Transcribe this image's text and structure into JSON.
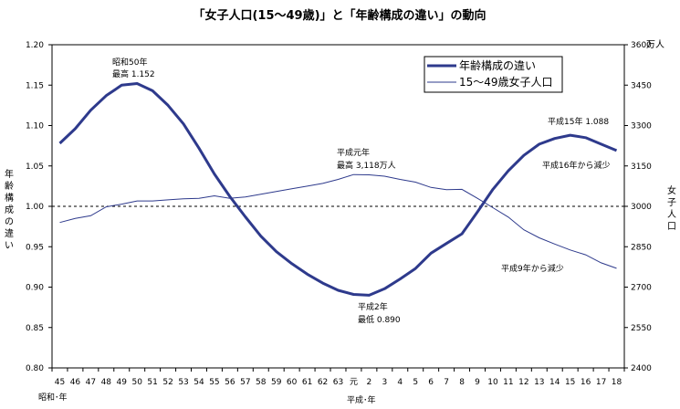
{
  "chart_data": {
    "type": "line",
    "title": "「女子人口(15～49歳)」と「年齢構成の違い」の動向",
    "x": [
      "45",
      "46",
      "47",
      "48",
      "49",
      "50",
      "51",
      "52",
      "53",
      "54",
      "55",
      "56",
      "57",
      "58",
      "59",
      "60",
      "61",
      "62",
      "63",
      "元",
      "2",
      "3",
      "4",
      "5",
      "6",
      "7",
      "8",
      "9",
      "10",
      "11",
      "12",
      "13",
      "14",
      "15",
      "16",
      "17",
      "18"
    ],
    "x_era_labels": [
      {
        "text": "昭和･年",
        "at": "45"
      },
      {
        "text": "平成･年",
        "at": "元"
      }
    ],
    "y_left": {
      "label": "年齢構成の違い",
      "range": [
        0.8,
        1.2
      ],
      "ticks": [
        "0.80",
        "0.85",
        "0.90",
        "0.95",
        "1.00",
        "1.05",
        "1.10",
        "1.15",
        "1.20"
      ]
    },
    "y_right": {
      "label": "女子人口",
      "unit": "万人",
      "range": [
        2400,
        3600
      ],
      "ticks": [
        "2400",
        "2550",
        "2700",
        "2850",
        "3000",
        "3150",
        "3300",
        "3450",
        "3600"
      ]
    },
    "reference_line": 1.0,
    "series": [
      {
        "name": "年齢構成の違い",
        "axis": "left",
        "color": "#2e3a8c",
        "values": [
          1.078,
          1.096,
          1.119,
          1.137,
          1.15,
          1.152,
          1.143,
          1.125,
          1.102,
          1.072,
          1.04,
          1.012,
          0.987,
          0.963,
          0.944,
          0.929,
          0.916,
          0.905,
          0.896,
          0.891,
          0.89,
          0.898,
          0.91,
          0.923,
          0.942,
          0.954,
          0.966,
          0.993,
          1.021,
          1.044,
          1.063,
          1.077,
          1.084,
          1.088,
          1.085,
          1.077,
          1.069
        ]
      },
      {
        "name": "15～49歳女子人口",
        "axis": "right",
        "color": "#2e3a8c",
        "values": [
          2940,
          2955,
          2965,
          2998,
          3008,
          3020,
          3020,
          3024,
          3028,
          3030,
          3039,
          3030,
          3035,
          3045,
          3055,
          3065,
          3075,
          3085,
          3100,
          3118,
          3117,
          3112,
          3100,
          3090,
          3070,
          3062,
          3063,
          3030,
          2995,
          2960,
          2913,
          2883,
          2860,
          2838,
          2820,
          2790,
          2770
        ]
      }
    ],
    "annotations": [
      {
        "lines": [
          "昭和50年",
          "最高  1.152"
        ]
      },
      {
        "lines": [
          "平成元年",
          "最高  3,118万人"
        ]
      },
      {
        "lines": [
          "平成2年",
          "最低  0.890"
        ]
      },
      {
        "lines": [
          "平成15年  1.088"
        ]
      },
      {
        "lines": [
          "平成16年から減少"
        ]
      },
      {
        "lines": [
          "平成9年から減少"
        ]
      }
    ],
    "legend": {
      "placement": "top-right"
    }
  }
}
